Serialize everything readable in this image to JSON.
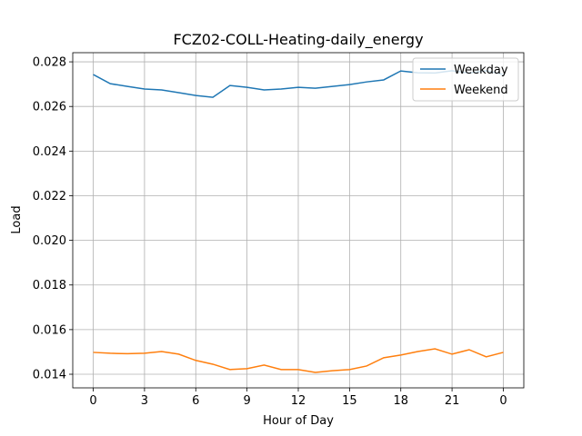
{
  "chart_data": {
    "type": "line",
    "title": "FCZ02-COLL-Heating-daily_energy",
    "xlabel": "Hour of Day",
    "ylabel": "Load",
    "x": [
      0,
      1,
      2,
      3,
      4,
      5,
      6,
      7,
      8,
      9,
      10,
      11,
      12,
      13,
      14,
      15,
      16,
      17,
      18,
      19,
      20,
      21,
      22,
      23,
      24
    ],
    "series": [
      {
        "name": "Weekday",
        "color": "#1f77b4",
        "values": [
          0.02743,
          0.02702,
          0.0269,
          0.02678,
          0.02674,
          0.02662,
          0.02649,
          0.02641,
          0.02694,
          0.02686,
          0.02674,
          0.02678,
          0.02686,
          0.02682,
          0.0269,
          0.02698,
          0.0271,
          0.02719,
          0.02759,
          0.02751,
          0.0275,
          0.0276,
          0.0275,
          0.0276,
          0.02743
        ]
      },
      {
        "name": "Weekend",
        "color": "#ff7f0e",
        "values": [
          0.01498,
          0.01494,
          0.01492,
          0.01494,
          0.01502,
          0.0149,
          0.01462,
          0.01445,
          0.01421,
          0.01425,
          0.01441,
          0.01421,
          0.01421,
          0.01408,
          0.01416,
          0.01421,
          0.01437,
          0.01474,
          0.01486,
          0.01502,
          0.01514,
          0.0149,
          0.0151,
          0.01478,
          0.01498
        ]
      }
    ],
    "xlim": [
      -1.2,
      25.2
    ],
    "xticks": [
      0,
      3,
      6,
      9,
      12,
      15,
      18,
      21,
      {
        "value": 24,
        "label": "0"
      }
    ],
    "ylim": [
      0.01339,
      0.02841
    ],
    "yticks": [
      0.014,
      0.016,
      0.018,
      {
        "value": 0.02,
        "label": "0.020"
      },
      0.022,
      0.024,
      0.026,
      0.028
    ],
    "grid": true,
    "legend": "upper right"
  }
}
